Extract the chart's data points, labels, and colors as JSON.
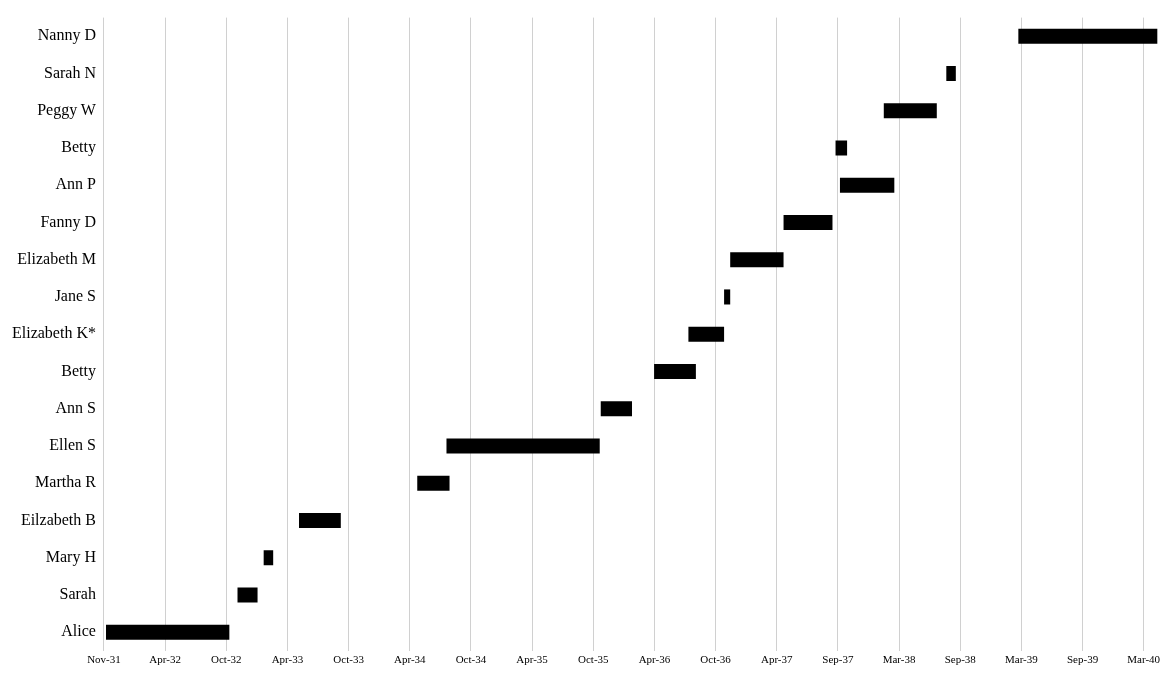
{
  "chart_data": {
    "type": "bar",
    "orientation": "horizontal",
    "categories": [
      "Nanny D",
      "Sarah N",
      "Peggy W",
      "Betty",
      "Ann P",
      "Fanny D",
      "Elizabeth M",
      "Jane S",
      "Elizabeth K*",
      "Betty",
      "Ann S",
      "Ellen S",
      "Martha R",
      "Eilzabeth B",
      "Mary H",
      "Sarah",
      "Alice"
    ],
    "base": [
      -11250,
      -11462,
      -11646,
      -11788,
      -11775,
      -11941,
      -12098,
      -12116,
      -12221,
      -12322,
      -12479,
      -12933,
      -13019,
      -13367,
      -13471,
      -13548,
      -13935
    ],
    "values": [
      409,
      28,
      156,
      34,
      160,
      144,
      157,
      18,
      105,
      123,
      92,
      451,
      95,
      123,
      28,
      59,
      363
    ],
    "color": "#000000",
    "xlim": [
      "1931-11-01",
      "1940-04-29"
    ],
    "xticks": [
      {
        "value": "1931-11-01",
        "label": "Nov-31"
      },
      {
        "value": "1932-04-29",
        "label": "Apr-32"
      },
      {
        "value": "1932-10-26",
        "label": "Oct-32"
      },
      {
        "value": "1933-04-24",
        "label": "Apr-33"
      },
      {
        "value": "1933-10-21",
        "label": "Oct-33"
      },
      {
        "value": "1934-04-19",
        "label": "Apr-34"
      },
      {
        "value": "1934-10-16",
        "label": "Oct-34"
      },
      {
        "value": "1935-04-14",
        "label": "Apr-35"
      },
      {
        "value": "1935-10-11",
        "label": "Oct-35"
      },
      {
        "value": "1936-04-08",
        "label": "Apr-36"
      },
      {
        "value": "1936-10-05",
        "label": "Oct-36"
      },
      {
        "value": "1937-04-03",
        "label": "Apr-37"
      },
      {
        "value": "1937-09-30",
        "label": "Sep-37"
      },
      {
        "value": "1938-03-29",
        "label": "Mar-38"
      },
      {
        "value": "1938-09-25",
        "label": "Sep-38"
      },
      {
        "value": "1939-03-24",
        "label": "Mar-39"
      },
      {
        "value": "1939-09-20",
        "label": "Sep-39"
      },
      {
        "value": "1940-03-18",
        "label": "Mar-40"
      }
    ],
    "grid": "x"
  }
}
